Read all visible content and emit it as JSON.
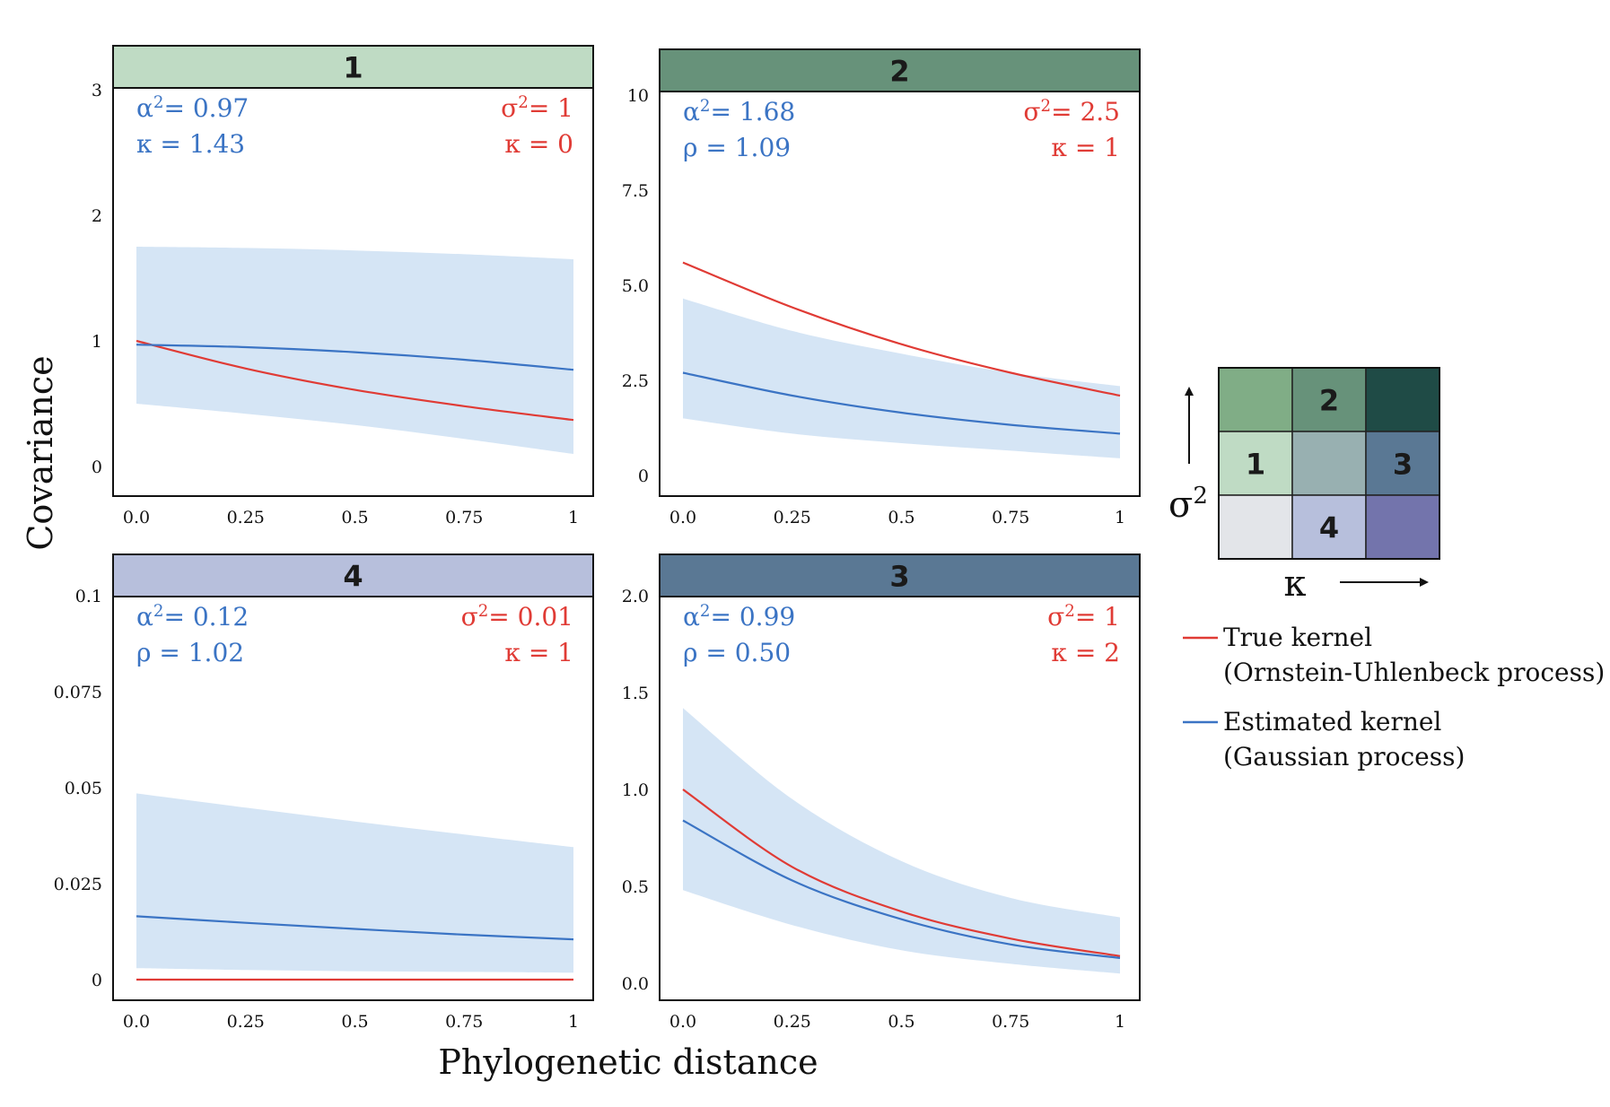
{
  "figure": {
    "ylabel": "Covariance",
    "xlabel": "Phylogenetic distance"
  },
  "chart_data": [
    {
      "type": "line",
      "panel": "1",
      "header_color": "#bfdbc4",
      "x": [
        0,
        0.25,
        0.5,
        0.75,
        1
      ],
      "xticks": [
        "0.0",
        "0.25",
        "0.5",
        "0.75",
        "1"
      ],
      "ylim": [
        0,
        3
      ],
      "yticks": [
        {
          "v": 0,
          "t": "0"
        },
        {
          "v": 1,
          "t": "1"
        },
        {
          "v": 2,
          "t": "2"
        },
        {
          "v": 3,
          "t": "3"
        }
      ],
      "series": [
        {
          "name": "True kernel",
          "color": "#e03b35",
          "values": [
            1.0,
            0.78,
            0.61,
            0.48,
            0.37
          ]
        },
        {
          "name": "Estimated kernel",
          "color": "#3b74c4",
          "values": [
            0.97,
            0.95,
            0.91,
            0.85,
            0.77
          ]
        }
      ],
      "band": {
        "lower": [
          0.5,
          0.42,
          0.33,
          0.22,
          0.1
        ],
        "upper": [
          1.75,
          1.74,
          1.72,
          1.69,
          1.65
        ]
      },
      "est_params": [
        "α²= 0.97",
        "κ = 1.43"
      ],
      "true_params": [
        "σ²= 1",
        "κ = 0"
      ]
    },
    {
      "type": "line",
      "panel": "2",
      "header_color": "#67927a",
      "x": [
        0,
        0.25,
        0.5,
        0.75,
        1
      ],
      "xticks": [
        "0.0",
        "0.25",
        "0.5",
        "0.75",
        "1"
      ],
      "ylim": [
        0,
        10
      ],
      "yticks": [
        {
          "v": 0,
          "t": "0"
        },
        {
          "v": 2.5,
          "t": "2.5"
        },
        {
          "v": 5,
          "t": "5.0"
        },
        {
          "v": 7.5,
          "t": "7.5"
        },
        {
          "v": 10,
          "t": "10"
        }
      ],
      "series": [
        {
          "name": "True kernel",
          "color": "#e03b35",
          "values": [
            5.6,
            4.42,
            3.45,
            2.7,
            2.1
          ]
        },
        {
          "name": "Estimated kernel",
          "color": "#3b74c4",
          "values": [
            2.7,
            2.1,
            1.65,
            1.33,
            1.1
          ]
        }
      ],
      "band": {
        "lower": [
          1.5,
          1.1,
          0.85,
          0.65,
          0.45
        ],
        "upper": [
          4.65,
          3.8,
          3.2,
          2.7,
          2.35
        ]
      },
      "est_params": [
        "α²= 1.68",
        "ρ = 1.09"
      ],
      "true_params": [
        "σ²= 2.5",
        "κ = 1"
      ]
    },
    {
      "type": "line",
      "panel": "4",
      "header_color": "#b7bfdc",
      "x": [
        0,
        0.25,
        0.5,
        0.75,
        1
      ],
      "xticks": [
        "0.0",
        "0.25",
        "0.5",
        "0.75",
        "1"
      ],
      "ylim": [
        0,
        0.1
      ],
      "yticks": [
        {
          "v": 0,
          "t": "0"
        },
        {
          "v": 0.025,
          "t": "0.025"
        },
        {
          "v": 0.05,
          "t": "0.05"
        },
        {
          "v": 0.075,
          "t": "0.075"
        },
        {
          "v": 0.1,
          "t": "0.1"
        }
      ],
      "series": [
        {
          "name": "True kernel",
          "color": "#e03b35",
          "values": [
            0,
            0,
            0,
            0,
            0
          ]
        },
        {
          "name": "Estimated kernel",
          "color": "#3b74c4",
          "values": [
            0.0165,
            0.0148,
            0.0132,
            0.0117,
            0.0105
          ]
        }
      ],
      "band": {
        "lower": [
          0.003,
          0.0025,
          0.0022,
          0.002,
          0.0018
        ],
        "upper": [
          0.0485,
          0.0448,
          0.0412,
          0.0378,
          0.0345
        ]
      },
      "est_params": [
        "α²= 0.12",
        "ρ = 1.02"
      ],
      "true_params": [
        "σ²= 0.01",
        "κ = 1"
      ]
    },
    {
      "type": "line",
      "panel": "3",
      "header_color": "#5a7894",
      "x": [
        0,
        0.25,
        0.5,
        0.75,
        1
      ],
      "xticks": [
        "0.0",
        "0.25",
        "0.5",
        "0.75",
        "1"
      ],
      "ylim": [
        0,
        2
      ],
      "yticks": [
        {
          "v": 0,
          "t": "0.0"
        },
        {
          "v": 0.5,
          "t": "0.5"
        },
        {
          "v": 1,
          "t": "1.0"
        },
        {
          "v": 1.5,
          "t": "1.5"
        },
        {
          "v": 2,
          "t": "2.0"
        }
      ],
      "series": [
        {
          "name": "True kernel",
          "color": "#e03b35",
          "values": [
            1.0,
            0.6,
            0.37,
            0.23,
            0.14
          ]
        },
        {
          "name": "Estimated kernel",
          "color": "#3b74c4",
          "values": [
            0.84,
            0.53,
            0.33,
            0.2,
            0.13
          ]
        }
      ],
      "band": {
        "lower": [
          0.48,
          0.3,
          0.17,
          0.1,
          0.05
        ],
        "upper": [
          1.42,
          0.95,
          0.63,
          0.44,
          0.34
        ]
      },
      "est_params": [
        "α²= 0.99",
        "ρ = 0.50"
      ],
      "true_params": [
        "σ²= 1",
        "κ = 2"
      ]
    }
  ],
  "legend": {
    "items": [
      {
        "label": "True kernel",
        "sublabel": "(Ornstein-Uhlenbeck process)",
        "color": "#e03b35"
      },
      {
        "label": "Estimated kernel",
        "sublabel": "(Gaussian process)",
        "color": "#3b74c4"
      }
    ]
  },
  "key_grid": {
    "y_label": "σ²",
    "x_label": "κ",
    "cells": [
      {
        "row": 0,
        "col": 0,
        "color": "#80ad86",
        "label": ""
      },
      {
        "row": 0,
        "col": 1,
        "color": "#67927a",
        "label": "2"
      },
      {
        "row": 0,
        "col": 2,
        "color": "#1f4b46",
        "label": ""
      },
      {
        "row": 1,
        "col": 0,
        "color": "#bfdbc4",
        "label": "1"
      },
      {
        "row": 1,
        "col": 1,
        "color": "#98b0b1",
        "label": ""
      },
      {
        "row": 1,
        "col": 2,
        "color": "#5a7894",
        "label": "3"
      },
      {
        "row": 2,
        "col": 0,
        "color": "#e3e5e9",
        "label": ""
      },
      {
        "row": 2,
        "col": 1,
        "color": "#b7bfdc",
        "label": "4"
      },
      {
        "row": 2,
        "col": 2,
        "color": "#7374ac",
        "label": ""
      }
    ]
  }
}
